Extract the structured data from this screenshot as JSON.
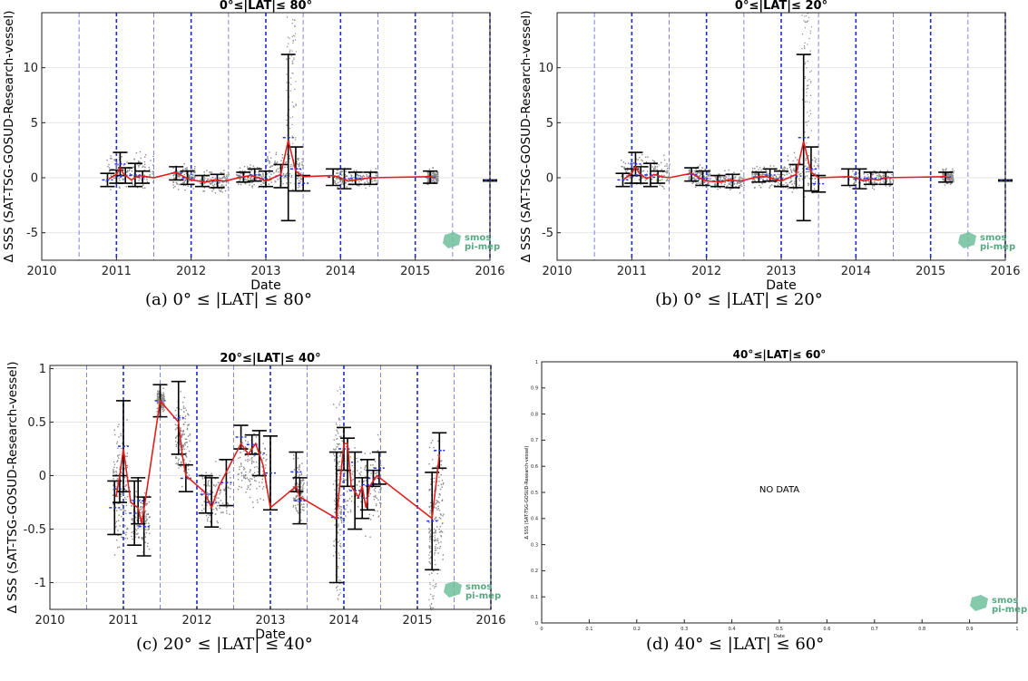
{
  "logo": {
    "line1": "smos",
    "line2": "pi-mep"
  },
  "chart_data": [
    {
      "id": "a",
      "type": "scatter",
      "title": "0°≤|LAT|≤ 80°",
      "xlabel": "Date",
      "ylabel": "Δ SSS (SAT-TSG-GOSUD-Research-vessel)",
      "xlim": [
        2010,
        2016
      ],
      "ylim": [
        -7.5,
        15
      ],
      "xticks": [
        "2010",
        "2011",
        "2012",
        "2013",
        "2014",
        "2015",
        "2016"
      ],
      "yticks": [
        {
          "v": -5,
          "label": "-5"
        },
        {
          "v": 0,
          "label": "0"
        },
        {
          "v": 5,
          "label": "5"
        },
        {
          "v": 10,
          "label": "10"
        }
      ],
      "caption": "(a) 0° ≤ |LAT| ≤ 80°",
      "year_lines": [
        2011,
        2012,
        2013,
        2014,
        2015,
        2016
      ],
      "half_lines": [
        2010.5,
        2011.5,
        2012.5,
        2013.5,
        2014.5,
        2015.5
      ],
      "mean_curve": [
        [
          2010.9,
          -0.1
        ],
        [
          2011.0,
          0.3
        ],
        [
          2011.05,
          0.9
        ],
        [
          2011.1,
          0.3
        ],
        [
          2011.2,
          -0.2
        ],
        [
          2011.3,
          0.2
        ],
        [
          2011.4,
          0.1
        ],
        [
          2011.5,
          0.0
        ],
        [
          2011.8,
          0.5
        ],
        [
          2011.9,
          0.1
        ],
        [
          2012.0,
          -0.2
        ],
        [
          2012.2,
          -0.4
        ],
        [
          2012.3,
          -0.2
        ],
        [
          2012.45,
          -0.3
        ],
        [
          2012.7,
          0.1
        ],
        [
          2012.8,
          0.2
        ],
        [
          2012.9,
          0.0
        ],
        [
          2013.0,
          -0.3
        ],
        [
          2013.1,
          0.0
        ],
        [
          2013.2,
          0.3
        ],
        [
          2013.3,
          3.4
        ],
        [
          2013.4,
          0.6
        ],
        [
          2013.5,
          0.1
        ],
        [
          2013.9,
          0.2
        ],
        [
          2014.0,
          0.0
        ],
        [
          2014.1,
          -0.3
        ],
        [
          2014.2,
          -0.2
        ],
        [
          2014.3,
          -0.1
        ],
        [
          2014.4,
          0.0
        ],
        [
          2015.2,
          0.1
        ],
        [
          2015.25,
          0.0
        ]
      ],
      "error_bars": [
        [
          2010.88,
          -0.8,
          0.4
        ],
        [
          2011.0,
          -0.5,
          0.7
        ],
        [
          2011.05,
          0.2,
          2.3
        ],
        [
          2011.12,
          -0.5,
          0.9
        ],
        [
          2011.25,
          -0.8,
          1.3
        ],
        [
          2011.35,
          -0.5,
          0.6
        ],
        [
          2011.8,
          -0.2,
          1.0
        ],
        [
          2011.95,
          -0.6,
          0.6
        ],
        [
          2012.15,
          -0.8,
          0.2
        ],
        [
          2012.35,
          -0.9,
          0.3
        ],
        [
          2012.7,
          -0.4,
          0.5
        ],
        [
          2012.85,
          -0.3,
          0.8
        ],
        [
          2013.0,
          -0.8,
          0.6
        ],
        [
          2013.2,
          -0.9,
          1.2
        ],
        [
          2013.3,
          -3.9,
          11.2
        ],
        [
          2013.4,
          -1.2,
          2.8
        ],
        [
          2013.5,
          -1.2,
          0.2
        ],
        [
          2013.9,
          -0.7,
          0.8
        ],
        [
          2014.05,
          -1.0,
          0.8
        ],
        [
          2014.2,
          -0.6,
          0.5
        ],
        [
          2014.4,
          -0.6,
          0.5
        ],
        [
          2015.2,
          -0.5,
          0.6
        ],
        [
          2016.0,
          -0.3,
          -0.2
        ]
      ],
      "scatter_ranges": [
        [
          2010.85,
          2011.5,
          -1.6,
          3.0
        ],
        [
          2011.75,
          2012.05,
          -1.3,
          1.6
        ],
        [
          2012.1,
          2012.5,
          -1.5,
          1.0
        ],
        [
          2012.6,
          2013.0,
          -1.2,
          1.4
        ],
        [
          2013.0,
          2013.5,
          -2.0,
          3.0
        ],
        [
          2013.9,
          2014.5,
          -1.3,
          1.3
        ],
        [
          2015.15,
          2015.3,
          -0.9,
          1.1
        ]
      ],
      "spike_ranges": [
        [
          2013.27,
          2013.4,
          3,
          15
        ]
      ]
    },
    {
      "id": "b",
      "type": "scatter",
      "title": "0°≤|LAT|≤ 20°",
      "xlabel": "Date",
      "ylabel": "Δ SSS (SAT-TSG-GOSUD-Research-vessel)",
      "xlim": [
        2010,
        2016
      ],
      "ylim": [
        -7.5,
        15
      ],
      "xticks": [
        "2010",
        "2011",
        "2012",
        "2013",
        "2014",
        "2015",
        "2016"
      ],
      "yticks": [
        {
          "v": -5,
          "label": "-5"
        },
        {
          "v": 0,
          "label": "0"
        },
        {
          "v": 5,
          "label": "5"
        },
        {
          "v": 10,
          "label": "10"
        }
      ],
      "caption": "(b) 0° ≤ |LAT| ≤ 20°",
      "year_lines": [
        2011,
        2012,
        2013,
        2014,
        2015,
        2016
      ],
      "half_lines": [
        2010.5,
        2011.5,
        2012.5,
        2013.5,
        2014.5,
        2015.5
      ],
      "mean_curve": [
        [
          2010.9,
          -0.1
        ],
        [
          2011.0,
          0.4
        ],
        [
          2011.05,
          1.0
        ],
        [
          2011.1,
          0.4
        ],
        [
          2011.2,
          -0.1
        ],
        [
          2011.3,
          0.3
        ],
        [
          2011.4,
          0.1
        ],
        [
          2011.5,
          0.0
        ],
        [
          2011.8,
          0.4
        ],
        [
          2011.9,
          0.0
        ],
        [
          2012.0,
          -0.3
        ],
        [
          2012.2,
          -0.4
        ],
        [
          2012.3,
          -0.2
        ],
        [
          2012.45,
          -0.3
        ],
        [
          2012.7,
          0.1
        ],
        [
          2012.8,
          0.1
        ],
        [
          2012.9,
          -0.1
        ],
        [
          2013.0,
          -0.3
        ],
        [
          2013.1,
          0.0
        ],
        [
          2013.2,
          0.3
        ],
        [
          2013.3,
          3.3
        ],
        [
          2013.4,
          0.5
        ],
        [
          2013.5,
          0.0
        ],
        [
          2013.9,
          0.1
        ],
        [
          2014.0,
          0.0
        ],
        [
          2014.1,
          -0.3
        ],
        [
          2014.2,
          -0.1
        ],
        [
          2014.3,
          -0.2
        ],
        [
          2014.4,
          0.0
        ],
        [
          2015.2,
          0.1
        ],
        [
          2015.25,
          0.0
        ]
      ],
      "error_bars": [
        [
          2010.88,
          -0.8,
          0.4
        ],
        [
          2011.0,
          -0.5,
          0.8
        ],
        [
          2011.05,
          0.2,
          2.3
        ],
        [
          2011.12,
          -0.5,
          1.0
        ],
        [
          2011.25,
          -0.8,
          1.3
        ],
        [
          2011.35,
          -0.5,
          0.6
        ],
        [
          2011.8,
          -0.3,
          0.9
        ],
        [
          2011.95,
          -0.7,
          0.6
        ],
        [
          2012.15,
          -0.8,
          0.2
        ],
        [
          2012.35,
          -0.9,
          0.3
        ],
        [
          2012.7,
          -0.4,
          0.5
        ],
        [
          2012.85,
          -0.3,
          0.8
        ],
        [
          2013.0,
          -0.8,
          0.6
        ],
        [
          2013.2,
          -0.9,
          1.2
        ],
        [
          2013.3,
          -3.9,
          11.2
        ],
        [
          2013.4,
          -1.2,
          2.8
        ],
        [
          2013.5,
          -1.3,
          0.2
        ],
        [
          2013.9,
          -0.7,
          0.8
        ],
        [
          2014.05,
          -1.0,
          0.8
        ],
        [
          2014.2,
          -0.6,
          0.5
        ],
        [
          2014.4,
          -0.6,
          0.5
        ],
        [
          2015.2,
          -0.4,
          0.5
        ],
        [
          2016.0,
          -0.3,
          -0.2
        ]
      ],
      "scatter_ranges": [
        [
          2010.85,
          2011.5,
          -1.6,
          3.0
        ],
        [
          2011.75,
          2012.05,
          -1.3,
          1.6
        ],
        [
          2012.1,
          2012.5,
          -1.5,
          1.0
        ],
        [
          2012.6,
          2013.0,
          -1.2,
          1.4
        ],
        [
          2013.0,
          2013.5,
          -2.0,
          3.0
        ],
        [
          2013.9,
          2014.5,
          -1.3,
          1.3
        ],
        [
          2015.15,
          2015.3,
          -0.8,
          1.0
        ]
      ],
      "spike_ranges": [
        [
          2013.27,
          2013.4,
          3,
          15
        ]
      ]
    },
    {
      "id": "c",
      "type": "scatter",
      "title": "20°≤|LAT|≤ 40°",
      "xlabel": "Date",
      "ylabel": "Δ SSS (SAT-TSG-GOSUD-Research-vessel)",
      "xlim": [
        2010,
        2016
      ],
      "ylim": [
        -1.25,
        1.03
      ],
      "xticks": [
        "2010",
        "2011",
        "2012",
        "2013",
        "2014",
        "2015",
        "2016"
      ],
      "yticks": [
        {
          "v": -1,
          "label": "-1"
        },
        {
          "v": -0.5,
          "label": "-0.5"
        },
        {
          "v": 0,
          "label": "0"
        },
        {
          "v": 0.5,
          "label": "0.5"
        },
        {
          "v": 1,
          "label": "1"
        }
      ],
      "caption": "(c) 20° ≤ |LAT| ≤ 40°",
      "year_lines": [
        2011,
        2012,
        2013,
        2014,
        2015,
        2016
      ],
      "half_lines": [
        2010.5,
        2011.5,
        2012.5,
        2013.5,
        2014.5,
        2015.5
      ],
      "mean_curve": [
        [
          2010.9,
          -0.2
        ],
        [
          2010.95,
          0.0
        ],
        [
          2011.0,
          0.25
        ],
        [
          2011.05,
          0.0
        ],
        [
          2011.1,
          -0.25
        ],
        [
          2011.2,
          -0.3
        ],
        [
          2011.25,
          -0.45
        ],
        [
          2011.5,
          0.7
        ],
        [
          2011.75,
          0.5
        ],
        [
          2011.8,
          0.2
        ],
        [
          2011.85,
          0.0
        ],
        [
          2012.1,
          -0.15
        ],
        [
          2012.2,
          -0.3
        ],
        [
          2012.3,
          -0.1
        ],
        [
          2012.6,
          0.3
        ],
        [
          2012.7,
          0.2
        ],
        [
          2012.8,
          0.3
        ],
        [
          2012.9,
          0.1
        ],
        [
          2013.0,
          -0.3
        ],
        [
          2013.35,
          -0.1
        ],
        [
          2013.4,
          -0.2
        ],
        [
          2013.9,
          -0.4
        ],
        [
          2014.0,
          0.3
        ],
        [
          2014.05,
          0.3
        ],
        [
          2014.1,
          -0.1
        ],
        [
          2014.2,
          -0.2
        ],
        [
          2014.25,
          -0.1
        ],
        [
          2014.3,
          -0.3
        ],
        [
          2014.35,
          -0.1
        ],
        [
          2014.45,
          0.0
        ],
        [
          2015.2,
          -0.4
        ],
        [
          2015.3,
          0.2
        ]
      ],
      "error_bars": [
        [
          2010.88,
          -0.55,
          -0.05
        ],
        [
          2010.95,
          -0.25,
          0.0
        ],
        [
          2011.0,
          -0.15,
          0.7
        ],
        [
          2011.15,
          -0.65,
          -0.05
        ],
        [
          2011.2,
          -0.45,
          -0.02
        ],
        [
          2011.28,
          -0.75,
          -0.2
        ],
        [
          2011.5,
          0.55,
          0.85
        ],
        [
          2011.75,
          0.2,
          0.88
        ],
        [
          2011.85,
          -0.15,
          0.1
        ],
        [
          2012.12,
          -0.35,
          0.0
        ],
        [
          2012.2,
          -0.48,
          -0.02
        ],
        [
          2012.4,
          -0.28,
          0.15
        ],
        [
          2012.6,
          0.25,
          0.47
        ],
        [
          2012.75,
          0.2,
          0.38
        ],
        [
          2012.85,
          0.0,
          0.42
        ],
        [
          2013.0,
          -0.32,
          0.37
        ],
        [
          2013.35,
          -0.15,
          0.22
        ],
        [
          2013.4,
          -0.45,
          -0.02
        ],
        [
          2013.9,
          -1.0,
          0.22
        ],
        [
          2014.0,
          0.05,
          0.45
        ],
        [
          2014.05,
          -0.1,
          0.35
        ],
        [
          2014.15,
          -0.5,
          0.22
        ],
        [
          2014.25,
          -0.4,
          -0.02
        ],
        [
          2014.32,
          -0.32,
          0.15
        ],
        [
          2014.4,
          -0.1,
          0.05
        ],
        [
          2014.48,
          -0.08,
          0.22
        ],
        [
          2015.2,
          -0.88,
          0.03
        ],
        [
          2015.3,
          0.07,
          0.4
        ]
      ],
      "scatter_ranges": [
        [
          2010.85,
          2011.05,
          -0.9,
          0.7
        ],
        [
          2011.1,
          2011.35,
          -0.8,
          0.0
        ],
        [
          2011.45,
          2011.55,
          0.55,
          0.85
        ],
        [
          2011.7,
          2011.9,
          -0.2,
          0.9
        ],
        [
          2012.05,
          2012.45,
          -0.6,
          0.2
        ],
        [
          2012.55,
          2012.95,
          -0.35,
          0.5
        ],
        [
          2013.3,
          2013.45,
          -0.5,
          0.25
        ],
        [
          2013.85,
          2014.0,
          -1.15,
          0.8
        ],
        [
          2014.0,
          2014.5,
          -0.6,
          0.45
        ],
        [
          2015.15,
          2015.35,
          -1.2,
          0.6
        ]
      ],
      "spike_ranges": [
        [
          2013.88,
          2013.95,
          -1.2,
          0.9
        ],
        [
          2015.15,
          2015.25,
          -1.25,
          -0.5
        ]
      ]
    },
    {
      "id": "d",
      "type": "scatter",
      "title": "40°≤|LAT|≤ 60°",
      "xlabel": "Date",
      "ylabel": "Δ SSS (SAT-TSG-GOSUD-Research-vessel)",
      "xlim": [
        0,
        1
      ],
      "ylim": [
        0,
        1
      ],
      "xticks": [
        "0",
        "0.1",
        "0.2",
        "0.3",
        "0.4",
        "0.5",
        "0.6",
        "0.7",
        "0.8",
        "0.9",
        "1"
      ],
      "yticks": [
        {
          "v": 0,
          "label": "0"
        },
        {
          "v": 0.1,
          "label": "0.1"
        },
        {
          "v": 0.2,
          "label": "0.2"
        },
        {
          "v": 0.3,
          "label": "0.3"
        },
        {
          "v": 0.4,
          "label": "0.4"
        },
        {
          "v": 0.5,
          "label": "0.5"
        },
        {
          "v": 0.6,
          "label": "0.6"
        },
        {
          "v": 0.7,
          "label": "0.7"
        },
        {
          "v": 0.8,
          "label": "0.8"
        },
        {
          "v": 0.9,
          "label": "0.9"
        },
        {
          "v": 1,
          "label": "1"
        }
      ],
      "caption": "(d) 40° ≤ |LAT| ≤ 60°",
      "annotation": "NO DATA"
    }
  ]
}
